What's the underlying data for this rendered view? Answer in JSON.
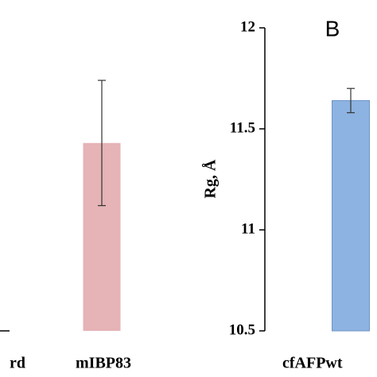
{
  "chart_data": [
    {
      "type": "bar",
      "categories": [
        "rd",
        "mIBP83"
      ],
      "values": [
        null,
        11.43
      ],
      "errors": [
        null,
        0.31
      ],
      "color": "#e6b3b6",
      "ylim": [
        10.5,
        12
      ]
    },
    {
      "type": "bar",
      "panel_label": "B",
      "ylabel": "Rg, Å",
      "categories": [
        "cfAFPwt"
      ],
      "values": [
        11.64
      ],
      "errors": [
        0.06
      ],
      "color": "#8db3e2",
      "ylim": [
        10.5,
        12
      ],
      "yticks": [
        10.5,
        11,
        11.5,
        12
      ]
    }
  ]
}
